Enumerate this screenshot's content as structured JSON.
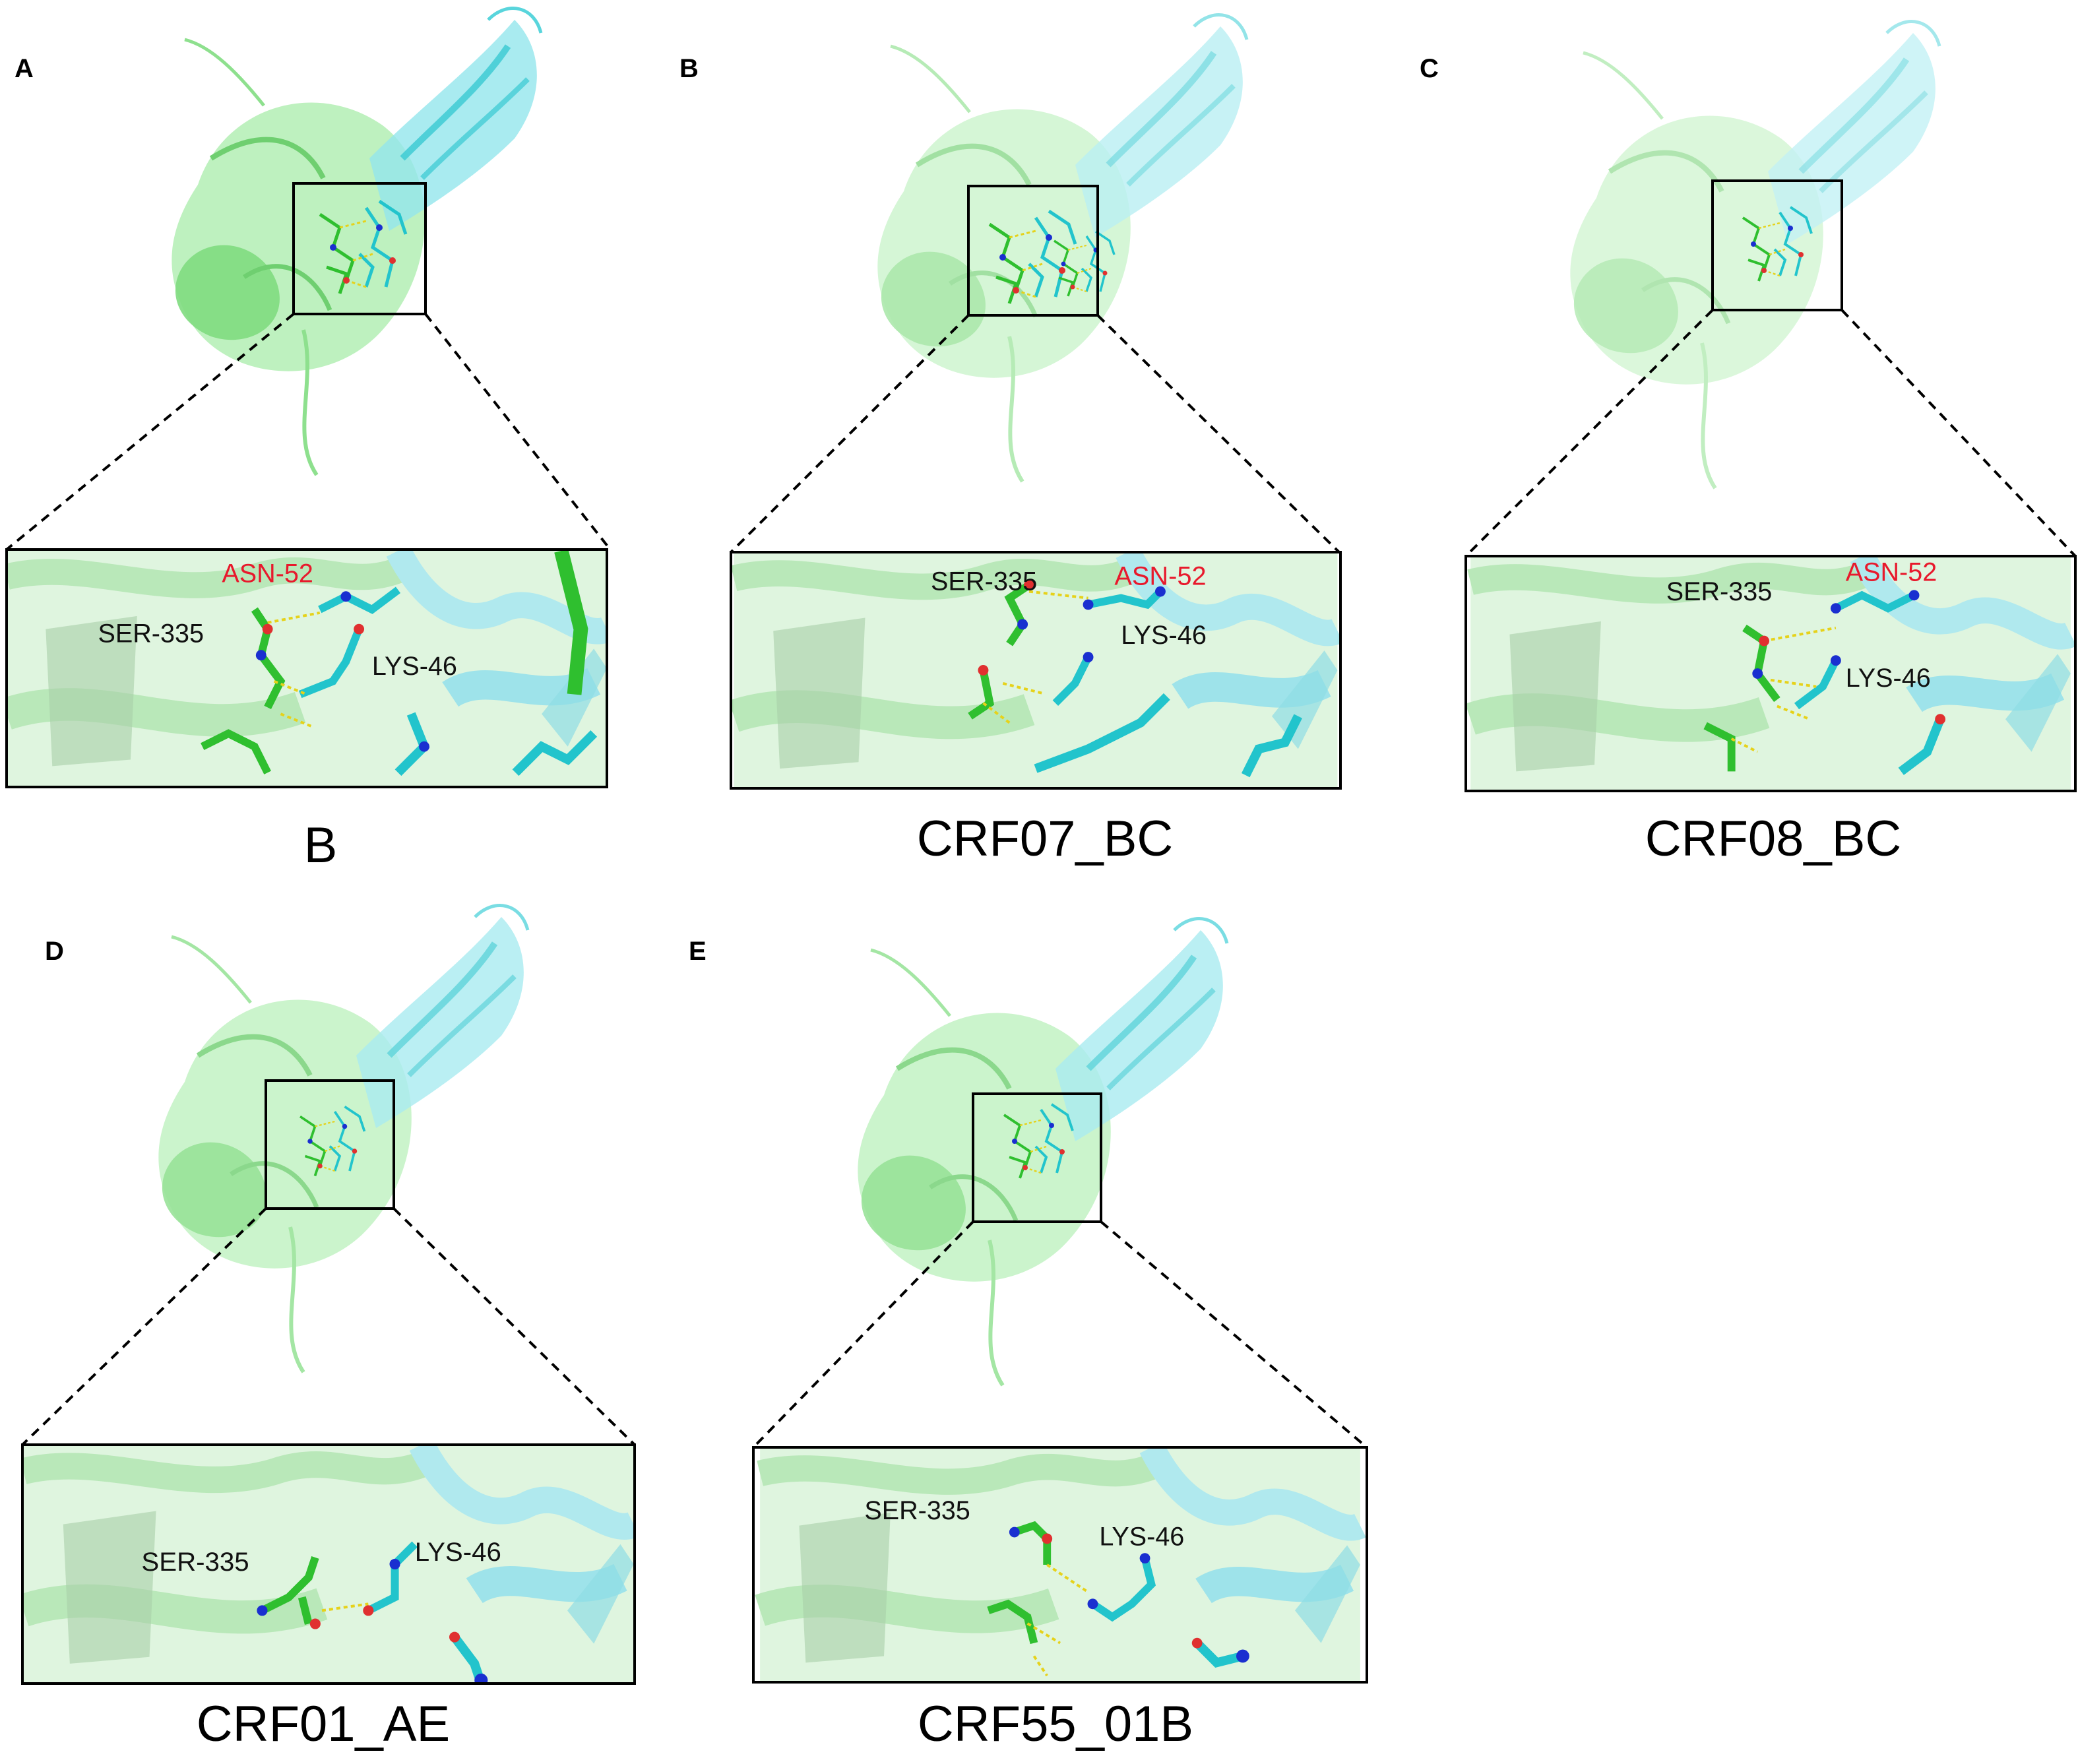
{
  "colors": {
    "chain_green": "#90e090",
    "chain_green_dark": "#4ec24e",
    "chain_cyan": "#4fd8e0",
    "stick_green": "#2fbf2f",
    "stick_cyan": "#22c4cc",
    "nitrogen": "#1a2fd0",
    "oxygen": "#e03030",
    "hbond": "#e6d21a",
    "highlight_label": "#e8192c",
    "text": "#111111"
  },
  "panels": [
    {
      "letter": "A",
      "caption": "B",
      "labels": {
        "ser": "SER-335",
        "lys": "LYS-46",
        "asn": "ASN-52"
      }
    },
    {
      "letter": "B",
      "caption": "CRF07_BC",
      "labels": {
        "ser": "SER-335",
        "lys": "LYS-46",
        "asn": "ASN-52"
      }
    },
    {
      "letter": "C",
      "caption": "CRF08_BC",
      "labels": {
        "ser": "SER-335",
        "lys": "LYS-46",
        "asn": "ASN-52"
      }
    },
    {
      "letter": "D",
      "caption": "CRF01_AE",
      "labels": {
        "ser": "SER-335",
        "lys": "LYS-46"
      }
    },
    {
      "letter": "E",
      "caption": "CRF55_01B",
      "labels": {
        "ser": "SER-335",
        "lys": "LYS-46"
      }
    }
  ]
}
